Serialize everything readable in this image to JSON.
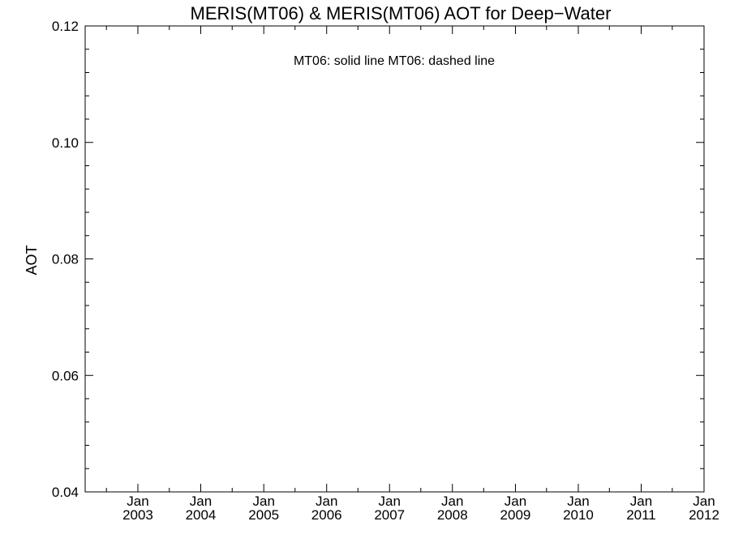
{
  "chart_data": {
    "type": "line",
    "title": "MERIS(MT06) & MERIS(MT06)  AOT for Deep−Water",
    "legend_text": "MT06: solid line   MT06: dashed line",
    "legend_position": "top-center",
    "xlabel": "",
    "ylabel": "AOT",
    "x_axis": {
      "type": "date",
      "range": [
        "2002-03-01",
        "2012-01-01"
      ],
      "ticks": [
        {
          "date": "2003-01-01",
          "month": "Jan",
          "year": "2003"
        },
        {
          "date": "2004-01-01",
          "month": "Jan",
          "year": "2004"
        },
        {
          "date": "2005-01-01",
          "month": "Jan",
          "year": "2005"
        },
        {
          "date": "2006-01-01",
          "month": "Jan",
          "year": "2006"
        },
        {
          "date": "2007-01-01",
          "month": "Jan",
          "year": "2007"
        },
        {
          "date": "2008-01-01",
          "month": "Jan",
          "year": "2008"
        },
        {
          "date": "2009-01-01",
          "month": "Jan",
          "year": "2009"
        },
        {
          "date": "2010-01-01",
          "month": "Jan",
          "year": "2010"
        },
        {
          "date": "2011-01-01",
          "month": "Jan",
          "year": "2011"
        },
        {
          "date": "2012-01-01",
          "month": "Jan",
          "year": "2012"
        }
      ],
      "minor_ticks_per_interval": 2
    },
    "y_axis": {
      "range": [
        0.04,
        0.12
      ],
      "major_ticks": [
        0.04,
        0.06,
        0.08,
        0.1,
        0.12
      ],
      "tick_labels": [
        "0.04",
        "0.06",
        "0.08",
        "0.10",
        "0.12"
      ],
      "minor_ticks_per_interval": 5
    },
    "grid": false,
    "series": [
      {
        "name": "MT06",
        "style": "solid",
        "points": []
      },
      {
        "name": "MT06",
        "style": "dashed",
        "points": []
      }
    ]
  }
}
